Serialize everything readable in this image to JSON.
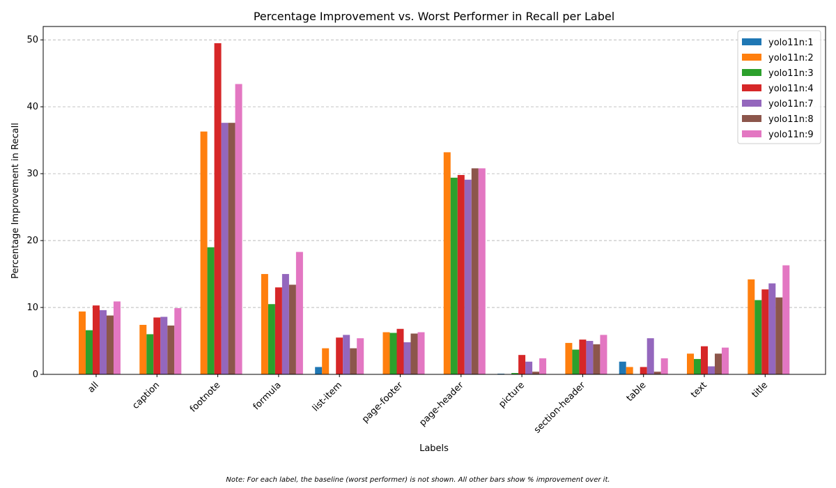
{
  "chart_data": {
    "type": "bar",
    "title": "Percentage Improvement vs. Worst Performer in Recall per Label",
    "xlabel": "Labels",
    "ylabel": "Percentage Improvement in Recall",
    "ylim": [
      0,
      52
    ],
    "yticks": [
      0,
      10,
      20,
      30,
      40,
      50
    ],
    "grid": true,
    "legend_position": "top-right",
    "note": "Note: For each label, the baseline (worst performer) is not shown. All other bars show % improvement over it.",
    "categories": [
      "all",
      "caption",
      "footnote",
      "formula",
      "list-item",
      "page-footer",
      "page-header",
      "picture",
      "section-header",
      "table",
      "text",
      "title"
    ],
    "series": [
      {
        "name": "yolo11n:1",
        "color": "#1f77b4",
        "values": [
          null,
          null,
          null,
          null,
          1.1,
          null,
          null,
          0.1,
          null,
          1.9,
          null,
          null
        ]
      },
      {
        "name": "yolo11n:2",
        "color": "#ff7f0e",
        "values": [
          9.4,
          7.4,
          36.3,
          15.0,
          3.9,
          6.3,
          33.2,
          null,
          4.7,
          1.1,
          3.1,
          14.2
        ]
      },
      {
        "name": "yolo11n:3",
        "color": "#2ca02c",
        "values": [
          6.6,
          6.0,
          19.0,
          10.5,
          null,
          6.2,
          29.4,
          0.2,
          3.7,
          null,
          2.3,
          11.1
        ]
      },
      {
        "name": "yolo11n:4",
        "color": "#d62728",
        "values": [
          10.3,
          8.5,
          49.5,
          13.0,
          5.5,
          6.8,
          29.8,
          2.9,
          5.2,
          1.1,
          4.2,
          12.7
        ]
      },
      {
        "name": "yolo11n:7",
        "color": "#9467bd",
        "values": [
          9.6,
          8.6,
          37.6,
          15.0,
          5.9,
          4.8,
          29.1,
          1.9,
          5.0,
          5.4,
          1.2,
          13.6
        ]
      },
      {
        "name": "yolo11n:8",
        "color": "#8c564b",
        "values": [
          8.8,
          7.3,
          37.6,
          13.4,
          3.9,
          6.1,
          30.8,
          0.4,
          4.5,
          0.4,
          3.1,
          11.5
        ]
      },
      {
        "name": "yolo11n:9",
        "color": "#e377c2",
        "values": [
          10.9,
          9.9,
          43.4,
          18.3,
          5.4,
          6.3,
          30.8,
          2.4,
          5.9,
          2.4,
          4.0,
          16.3
        ]
      }
    ]
  }
}
